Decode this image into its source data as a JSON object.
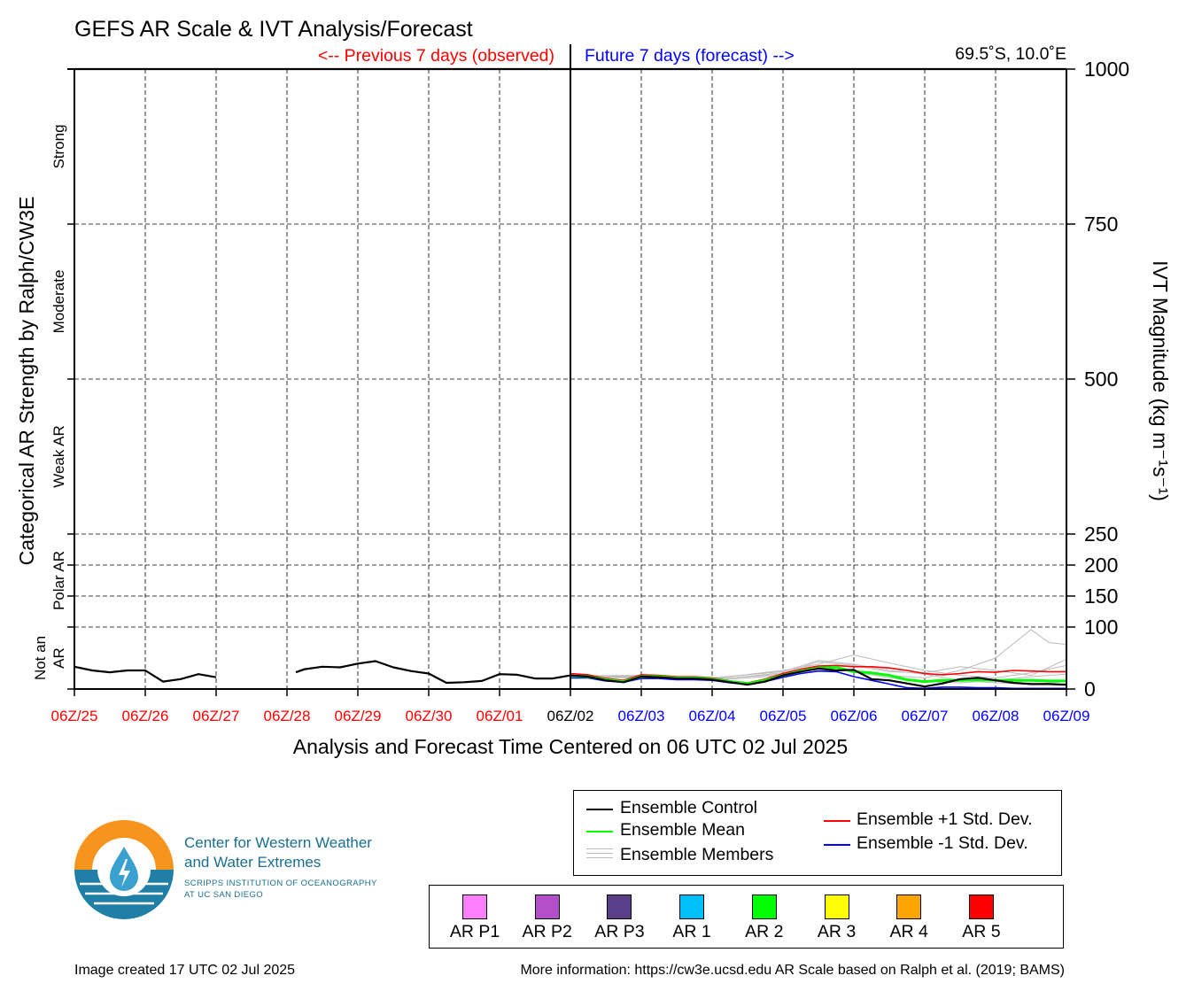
{
  "chart_data": {
    "type": "line",
    "title": "GEFS AR Scale & IVT Analysis/Forecast",
    "location": "69.5˚S, 10.0˚E",
    "prev_label": "<-- Previous 7 days (observed)",
    "future_label": "Future 7 days (forecast) -->",
    "xlabel": "Analysis and Forecast Time Centered on 06 UTC 02 Jul 2025",
    "ylabel_left": "Categorical AR Strength by Ralph/CW3E",
    "ylabel_right": "IVT Magnitude (kg m⁻¹s⁻¹)",
    "x_ticks": [
      "06Z/25",
      "06Z/26",
      "06Z/27",
      "06Z/28",
      "06Z/29",
      "06Z/30",
      "06Z/01",
      "06Z/02",
      "06Z/03",
      "06Z/04",
      "06Z/05",
      "06Z/06",
      "06Z/07",
      "06Z/08",
      "06Z/09"
    ],
    "x_tick_colors": [
      "#ff0000",
      "#ff0000",
      "#ff0000",
      "#ff0000",
      "#ff0000",
      "#ff0000",
      "#ff0000",
      "#000000",
      "#0000ff",
      "#0000ff",
      "#0000ff",
      "#0000ff",
      "#0000ff",
      "#0000ff",
      "#0000ff"
    ],
    "x_range_days": [
      -7,
      7
    ],
    "y_ticks": [
      0,
      100,
      150,
      200,
      250,
      500,
      750,
      1000
    ],
    "ylim": [
      0,
      1000
    ],
    "grid": true,
    "categories_left": [
      {
        "label": "Not an AR",
        "lines": [
          "Not an",
          "AR"
        ],
        "from": 0,
        "to": 100
      },
      {
        "label": "Polar AR",
        "lines": [
          "Polar AR"
        ],
        "from": 100,
        "to": 250
      },
      {
        "label": "Weak AR",
        "lines": [
          "Weak AR"
        ],
        "from": 250,
        "to": 500
      },
      {
        "label": "Moderate",
        "lines": [
          "Moderate"
        ],
        "from": 500,
        "to": 750
      },
      {
        "label": "Strong",
        "lines": [
          "Strong"
        ],
        "from": 750,
        "to": 1000
      }
    ],
    "series": [
      {
        "name": "Ensemble Control",
        "color": "#000000",
        "segments": [
          {
            "x": [
              -7,
              -6.75,
              -6.5,
              -6.25,
              -6,
              -5.75,
              -5.5,
              -5.25,
              -5
            ],
            "values": [
              36,
              30,
              27,
              30,
              30,
              12,
              16,
              24,
              19
            ]
          },
          {
            "x": [
              -3.875,
              -3.75,
              -3.5,
              -3.25,
              -3,
              -2.75,
              -2.5,
              -2.25,
              -2,
              -1.75,
              -1.5,
              -1.25,
              -1,
              -0.75,
              -0.5,
              -0.25,
              0,
              0.25,
              0.5,
              0.75,
              1,
              1.25,
              1.5,
              1.75,
              2,
              2.25,
              2.5,
              2.75,
              3,
              3.25,
              3.5,
              3.75,
              4,
              4.25,
              4.5,
              4.75,
              5,
              5.25,
              5.5,
              5.75,
              6,
              6.25,
              6.5,
              6.75,
              7
            ],
            "values": [
              27,
              32,
              36,
              35,
              41,
              45,
              35,
              29,
              25,
              10,
              11,
              13,
              24,
              23,
              17,
              17,
              22,
              20,
              14,
              11,
              20,
              19,
              17,
              17,
              15,
              11,
              7,
              12,
              22,
              28,
              33,
              30,
              31,
              16,
              14,
              9,
              4,
              9,
              16,
              18,
              14,
              10,
              8,
              8,
              7
            ]
          }
        ]
      },
      {
        "name": "Ensemble Mean",
        "color": "#00ff00",
        "x": [
          0,
          0.25,
          0.5,
          0.75,
          1,
          1.25,
          1.5,
          1.75,
          2,
          2.25,
          2.5,
          2.75,
          3,
          3.25,
          3.5,
          3.75,
          4,
          4.25,
          4.5,
          4.75,
          5,
          5.25,
          5.5,
          5.75,
          6,
          6.25,
          6.5,
          6.75,
          7
        ],
        "values": [
          21,
          20,
          15,
          12,
          20,
          20,
          18,
          18,
          16,
          12,
          9,
          14,
          22,
          29,
          34,
          35,
          28,
          26,
          22,
          15,
          12,
          14,
          14,
          15,
          14,
          14,
          14,
          13,
          13
        ]
      },
      {
        "name": "Ensemble +1 Std. Dev.",
        "color": "#ff0000",
        "x": [
          0,
          0.25,
          0.5,
          0.75,
          1,
          1.25,
          1.5,
          1.75,
          2,
          2.25,
          2.5,
          2.75,
          3,
          3.25,
          3.5,
          3.75,
          4,
          4.25,
          4.5,
          4.75,
          5,
          5.25,
          5.5,
          5.75,
          6,
          6.25,
          6.5,
          6.75,
          7
        ],
        "values": [
          25,
          23,
          17,
          14,
          23,
          22,
          20,
          20,
          18,
          13,
          10,
          16,
          25,
          32,
          37,
          38,
          36,
          36,
          34,
          30,
          25,
          23,
          25,
          28,
          27,
          30,
          29,
          28,
          28
        ]
      },
      {
        "name": "Ensemble -1 Std. Dev.",
        "color": "#0000ff",
        "x": [
          0,
          0.25,
          0.5,
          0.75,
          1,
          1.25,
          1.5,
          1.75,
          2,
          2.25,
          2.5,
          2.75,
          3,
          3.25,
          3.5,
          3.75,
          4,
          4.25,
          4.5,
          4.75,
          5,
          5.25,
          5.5,
          5.75,
          6,
          6.25,
          6.5,
          6.75,
          7
        ],
        "values": [
          18,
          18,
          13,
          11,
          17,
          17,
          15,
          15,
          14,
          10,
          8,
          12,
          19,
          25,
          29,
          28,
          20,
          14,
          8,
          2,
          1,
          3,
          3,
          2,
          2,
          1,
          1,
          1,
          1
        ]
      },
      {
        "name": "Ensemble Members",
        "color": "#bbbbbb",
        "members": [
          {
            "x": [
              0,
              1,
              2,
              3,
              3.5,
              4,
              4.5,
              5,
              5.5,
              6,
              6.5,
              6.75,
              7
            ],
            "values": [
              22,
              20,
              16,
              24,
              32,
              30,
              22,
              18,
              30,
              50,
              96,
              75,
              72
            ]
          },
          {
            "x": [
              0,
              1,
              2,
              3,
              3.5,
              4,
              4.5,
              5,
              5.5,
              6,
              6.5,
              7
            ],
            "values": [
              20,
              19,
              15,
              26,
              44,
              38,
              28,
              26,
              36,
              30,
              22,
              48
            ]
          },
          {
            "x": [
              0,
              1,
              2,
              3,
              3.5,
              4,
              4.5,
              5,
              5.5,
              6,
              6.5,
              7
            ],
            "values": [
              21,
              22,
              17,
              30,
              40,
              55,
              42,
              30,
              22,
              18,
              26,
              38
            ]
          },
          {
            "x": [
              0,
              1,
              2,
              3,
              3.5,
              4,
              4.5,
              5,
              5.5,
              6,
              6.5,
              7
            ],
            "values": [
              19,
              18,
              14,
              22,
              34,
              28,
              18,
              12,
              10,
              14,
              20,
              24
            ]
          },
          {
            "x": [
              0,
              1,
              2,
              3,
              3.5,
              4,
              4.5,
              5,
              5.5,
              6,
              6.5,
              7
            ],
            "values": [
              22,
              21,
              18,
              28,
              46,
              40,
              30,
              24,
              14,
              10,
              8,
              12
            ]
          }
        ]
      }
    ]
  },
  "legend": {
    "control": "Ensemble Control",
    "mean": "Ensemble Mean",
    "members": "Ensemble Members",
    "plus_std": "Ensemble +1 Std. Dev.",
    "minus_std": "Ensemble -1 Std. Dev."
  },
  "ar_scale": [
    {
      "label": "AR P1",
      "color": "#ff80ff"
    },
    {
      "label": "AR P2",
      "color": "#b24fc9"
    },
    {
      "label": "AR P3",
      "color": "#5a4089"
    },
    {
      "label": "AR 1",
      "color": "#00bfff"
    },
    {
      "label": "AR 2",
      "color": "#00ff00"
    },
    {
      "label": "AR 3",
      "color": "#ffff00"
    },
    {
      "label": "AR 4",
      "color": "#ffa500"
    },
    {
      "label": "AR 5",
      "color": "#ff0000"
    }
  ],
  "logo": {
    "line1": "Center for Western Weather",
    "line2": "and Water Extremes",
    "sub1": "SCRIPPS INSTITUTION OF OCEANOGRAPHY",
    "sub2": "AT UC SAN DIEGO",
    "orange": "#f7941d",
    "teal": "#1f7fa6"
  },
  "footer": {
    "created": "Image created 17 UTC 02 Jul 2025",
    "info": "More information: https://cw3e.ucsd.edu AR Scale based on Ralph et al. (2019; BAMS)"
  }
}
